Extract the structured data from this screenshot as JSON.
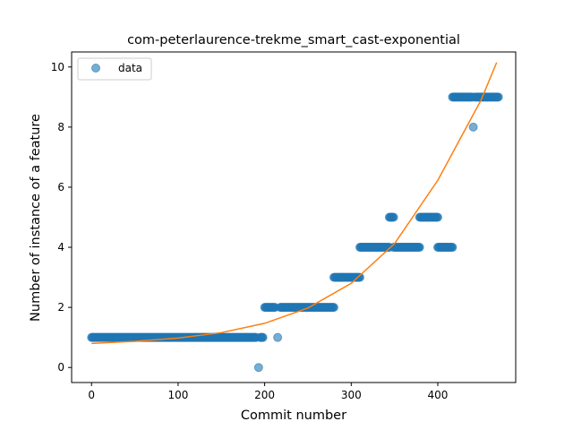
{
  "chart_data": {
    "type": "scatter",
    "title": "com-peterlaurence-trekme_smart_cast-exponential",
    "xlabel": "Commit number",
    "ylabel": "Number of instance of a feature",
    "xlim": [
      -23,
      490
    ],
    "ylim": [
      -0.5,
      10.5
    ],
    "xticks": [
      0,
      100,
      200,
      300,
      400
    ],
    "yticks": [
      0,
      2,
      4,
      6,
      8,
      10
    ],
    "grid": false,
    "legend": {
      "position": "upper-left",
      "entries": [
        "data"
      ]
    },
    "colors": {
      "data": "#1f77b4",
      "fit": "#ff7f0e"
    },
    "series": [
      {
        "name": "data",
        "kind": "scatter",
        "segments": [
          {
            "x_start": 0,
            "x_end": 190,
            "y": 1
          },
          {
            "x_start": 195,
            "x_end": 198,
            "y": 1
          },
          {
            "x_start": 193,
            "x_end": 193,
            "y": 0
          },
          {
            "x_start": 200,
            "x_end": 212,
            "y": 2
          },
          {
            "x_start": 215,
            "x_end": 215,
            "y": 1
          },
          {
            "x_start": 218,
            "x_end": 280,
            "y": 2
          },
          {
            "x_start": 280,
            "x_end": 310,
            "y": 3
          },
          {
            "x_start": 310,
            "x_end": 344,
            "y": 4
          },
          {
            "x_start": 344,
            "x_end": 349,
            "y": 5
          },
          {
            "x_start": 349,
            "x_end": 379,
            "y": 4
          },
          {
            "x_start": 379,
            "x_end": 400,
            "y": 5
          },
          {
            "x_start": 400,
            "x_end": 417,
            "y": 4
          },
          {
            "x_start": 417,
            "x_end": 440,
            "y": 9
          },
          {
            "x_start": 441,
            "x_end": 441,
            "y": 8
          },
          {
            "x_start": 443,
            "x_end": 470,
            "y": 9
          }
        ]
      },
      {
        "name": "",
        "kind": "line",
        "x": [
          0,
          50,
          100,
          150,
          200,
          250,
          300,
          350,
          400,
          450,
          468
        ],
        "y": [
          0.8,
          0.87,
          0.98,
          1.16,
          1.47,
          1.98,
          2.8,
          4.12,
          6.23,
          8.9,
          10.15
        ]
      }
    ]
  }
}
